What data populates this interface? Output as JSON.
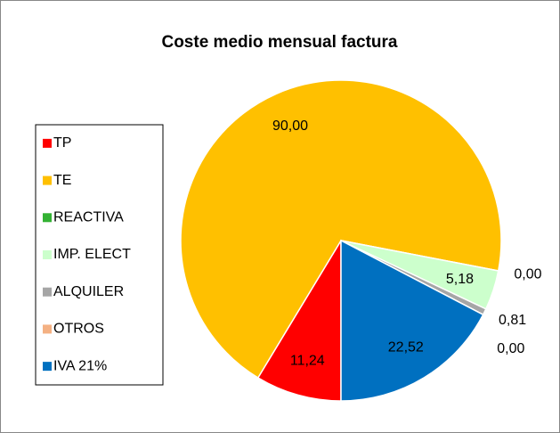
{
  "chart_data": {
    "type": "pie",
    "title": "Coste medio mensual factura",
    "categories": [
      "TP",
      "TE",
      "REACTIVA",
      "IMP. ELECT",
      "ALQUILER",
      "OTROS",
      "IVA 21%"
    ],
    "values": [
      11.24,
      90.0,
      0.0,
      5.18,
      0.81,
      0.0,
      22.52
    ],
    "value_labels": [
      "11,24",
      "90,00",
      "0,00",
      "5,18",
      "0,81",
      "0,00",
      "22,52"
    ],
    "colors": [
      "#ff0000",
      "#ffc000",
      "#33b233",
      "#ccffcc",
      "#a6a6a6",
      "#f4b183",
      "#0070c0"
    ],
    "legend": "left"
  }
}
